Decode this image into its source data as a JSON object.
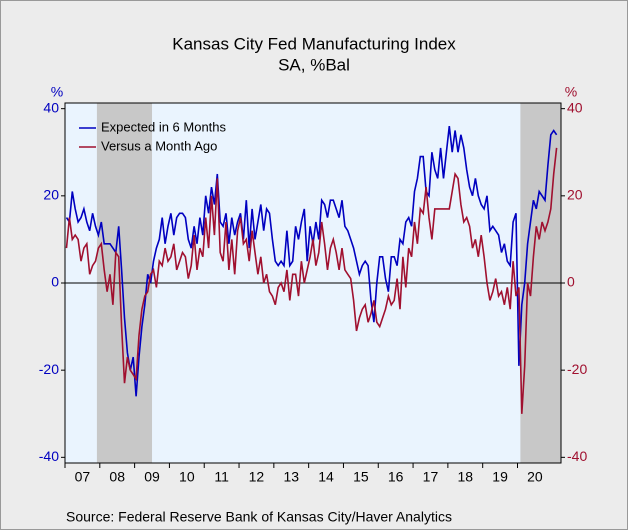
{
  "chart_data": {
    "type": "line",
    "title": "Kansas City Fed Manufacturing Index",
    "subtitle": "SA, %Bal",
    "ylabel": "%",
    "y2label": "%",
    "source": "Source:   Federal Reserve Bank of Kansas City/Haver Analytics",
    "legend": "upper left",
    "x": [
      "2007-01",
      "2007-02",
      "2007-03",
      "2007-04",
      "2007-05",
      "2007-06",
      "2007-07",
      "2007-08",
      "2007-09",
      "2007-10",
      "2007-11",
      "2007-12",
      "2008-01",
      "2008-02",
      "2008-03",
      "2008-04",
      "2008-05",
      "2008-06",
      "2008-07",
      "2008-08",
      "2008-09",
      "2008-10",
      "2008-11",
      "2008-12",
      "2009-01",
      "2009-02",
      "2009-03",
      "2009-04",
      "2009-05",
      "2009-06",
      "2009-07",
      "2009-08",
      "2009-09",
      "2009-10",
      "2009-11",
      "2009-12",
      "2010-01",
      "2010-02",
      "2010-03",
      "2010-04",
      "2010-05",
      "2010-06",
      "2010-07",
      "2010-08",
      "2010-09",
      "2010-10",
      "2010-11",
      "2010-12",
      "2011-01",
      "2011-02",
      "2011-03",
      "2011-04",
      "2011-05",
      "2011-06",
      "2011-07",
      "2011-08",
      "2011-09",
      "2011-10",
      "2011-11",
      "2011-12",
      "2012-01",
      "2012-02",
      "2012-03",
      "2012-04",
      "2012-05",
      "2012-06",
      "2012-07",
      "2012-08",
      "2012-09",
      "2012-10",
      "2012-11",
      "2012-12",
      "2013-01",
      "2013-02",
      "2013-03",
      "2013-04",
      "2013-05",
      "2013-06",
      "2013-07",
      "2013-08",
      "2013-09",
      "2013-10",
      "2013-11",
      "2013-12",
      "2014-01",
      "2014-02",
      "2014-03",
      "2014-04",
      "2014-05",
      "2014-06",
      "2014-07",
      "2014-08",
      "2014-09",
      "2014-10",
      "2014-11",
      "2014-12",
      "2015-01",
      "2015-02",
      "2015-03",
      "2015-04",
      "2015-05",
      "2015-06",
      "2015-07",
      "2015-08",
      "2015-09",
      "2015-10",
      "2015-11",
      "2015-12",
      "2016-01",
      "2016-02",
      "2016-03",
      "2016-04",
      "2016-05",
      "2016-06",
      "2016-07",
      "2016-08",
      "2016-09",
      "2016-10",
      "2016-11",
      "2016-12",
      "2017-01",
      "2017-02",
      "2017-03",
      "2017-04",
      "2017-05",
      "2017-06",
      "2017-07",
      "2017-08",
      "2017-09",
      "2017-10",
      "2017-11",
      "2017-12",
      "2018-01",
      "2018-02",
      "2018-03",
      "2018-04",
      "2018-05",
      "2018-06",
      "2018-07",
      "2018-08",
      "2018-09",
      "2018-10",
      "2018-11",
      "2018-12",
      "2019-01",
      "2019-02",
      "2019-03",
      "2019-04",
      "2019-05",
      "2019-06",
      "2019-07",
      "2019-08",
      "2019-09",
      "2019-10",
      "2019-11",
      "2019-12",
      "2020-01",
      "2020-02",
      "2020-03",
      "2020-04",
      "2020-05",
      "2020-06",
      "2020-07",
      "2020-08",
      "2020-09",
      "2020-10",
      "2020-11",
      "2020-12",
      "2021-01",
      "2021-02"
    ],
    "series": [
      {
        "name": "Expected in 6 Months",
        "color": "#0000c0",
        "axis": "y",
        "values": [
          15,
          14,
          21,
          17,
          14,
          15,
          17,
          14,
          12,
          16,
          13,
          11,
          14,
          9,
          9,
          9,
          8,
          7,
          13,
          3,
          -8,
          -16,
          -20,
          -17,
          -26,
          -17,
          -10,
          -5,
          2,
          0,
          5,
          8,
          10,
          15,
          9,
          13,
          16,
          11,
          15,
          16,
          16,
          15,
          10,
          8,
          13,
          9,
          15,
          11,
          20,
          16,
          22,
          18,
          25,
          14,
          13,
          16,
          9,
          15,
          11,
          14,
          16,
          10,
          19,
          8,
          17,
          10,
          14,
          18,
          12,
          17,
          16,
          10,
          5,
          4,
          5,
          4,
          12,
          4,
          5,
          13,
          10,
          14,
          17,
          5,
          13,
          9,
          14,
          10,
          19,
          18,
          15,
          19,
          19,
          17,
          15,
          19,
          13,
          12,
          10,
          8,
          5,
          2,
          4,
          5,
          4,
          -4,
          -9,
          0,
          6,
          6,
          1,
          -2,
          6,
          6,
          4,
          10,
          9,
          14,
          15,
          13,
          21,
          24,
          29,
          29,
          21,
          20,
          30,
          26,
          24,
          31,
          24,
          30,
          36,
          30,
          35,
          30,
          34,
          31,
          26,
          22,
          20,
          24,
          20,
          18,
          17,
          20,
          12,
          13,
          12,
          11,
          7,
          9,
          5,
          4,
          14,
          16,
          -19,
          -5,
          0,
          9,
          14,
          19,
          17,
          21,
          20,
          19,
          27,
          34,
          35,
          34
        ]
      },
      {
        "name": "Versus a Month Ago",
        "color": "#a0102f",
        "axis": "y",
        "values": [
          8,
          15,
          10,
          11,
          10,
          5,
          8,
          9,
          2,
          4,
          5,
          8,
          9,
          3,
          -2,
          2,
          -5,
          7,
          6,
          -10,
          -23,
          -17,
          -20,
          -21,
          -22,
          -12,
          -6,
          -3,
          -2,
          2,
          3,
          -1,
          5,
          4,
          8,
          5,
          6,
          9,
          3,
          5,
          7,
          6,
          1,
          4,
          11,
          3,
          8,
          6,
          15,
          8,
          20,
          11,
          24,
          7,
          5,
          14,
          3,
          10,
          2,
          12,
          15,
          9,
          10,
          5,
          12,
          7,
          2,
          6,
          0,
          2,
          -2,
          -3,
          -5,
          -1,
          0,
          -2,
          3,
          -4,
          2,
          2,
          -3,
          5,
          0,
          3,
          6,
          10,
          4,
          7,
          14,
          9,
          3,
          8,
          10,
          7,
          3,
          8,
          3,
          2,
          1,
          -4,
          -11,
          -8,
          -6,
          -5,
          -9,
          -7,
          -4,
          -9,
          -10,
          -8,
          -6,
          -3,
          -5,
          -4,
          1,
          -6,
          6,
          -1,
          8,
          6,
          14,
          9,
          17,
          16,
          22,
          15,
          10,
          17,
          17,
          17,
          17,
          17,
          17,
          21,
          25,
          24,
          18,
          14,
          15,
          13,
          8,
          10,
          6,
          11,
          6,
          0,
          -4,
          -2,
          1,
          -3,
          -2,
          -5,
          -1,
          -6,
          5,
          -3,
          -1,
          -30,
          -19,
          0,
          -3,
          6,
          13,
          10,
          14,
          12,
          14,
          17,
          25,
          31
        ]
      }
    ],
    "xlim": [
      "2007-01",
      "2021-03"
    ],
    "xticks": [
      {
        "value": "2007-01",
        "label": "07"
      },
      {
        "value": "2008-01",
        "label": "08"
      },
      {
        "value": "2009-01",
        "label": "09"
      },
      {
        "value": "2010-01",
        "label": "10"
      },
      {
        "value": "2011-01",
        "label": "11"
      },
      {
        "value": "2012-01",
        "label": "12"
      },
      {
        "value": "2013-01",
        "label": "13"
      },
      {
        "value": "2014-01",
        "label": "14"
      },
      {
        "value": "2015-01",
        "label": "15"
      },
      {
        "value": "2016-01",
        "label": "16"
      },
      {
        "value": "2017-01",
        "label": "17"
      },
      {
        "value": "2018-01",
        "label": "18"
      },
      {
        "value": "2019-01",
        "label": "19"
      },
      {
        "value": "2020-01",
        "label": "20"
      }
    ],
    "ylim": [
      -41.3,
      41.3
    ],
    "yticks": [
      -40,
      -20,
      0,
      20,
      40
    ],
    "y2lim": [
      -41.3,
      41.3
    ],
    "y2ticks": [
      -40,
      -20,
      0,
      20,
      40
    ],
    "y_color": "#0000c0",
    "y2_color": "#a0102f",
    "shaded_periods": [
      [
        "2007-12",
        "2009-06"
      ],
      [
        "2020-02",
        "2021-03"
      ]
    ],
    "shade_color": "#c8c8c8",
    "plot_background": "#eaf4fe"
  }
}
